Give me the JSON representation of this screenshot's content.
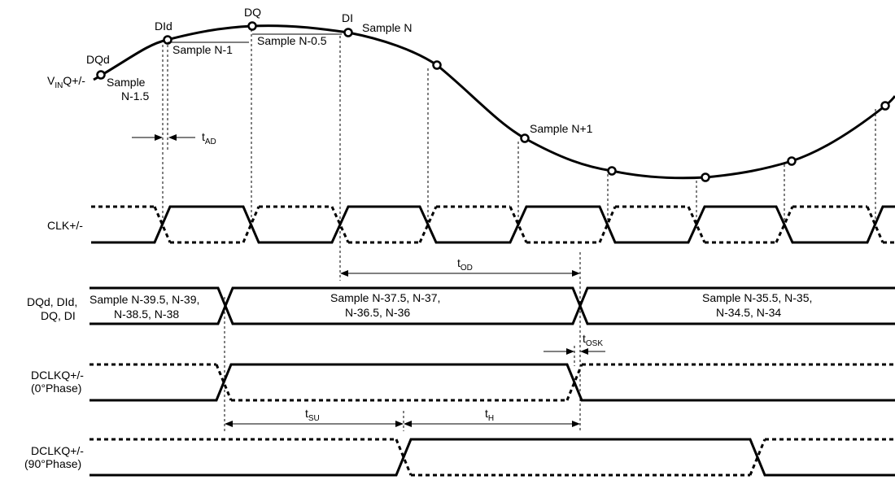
{
  "signals": {
    "vin_main": "V",
    "vin_sub": "IN",
    "vin_suffix": "Q+/-",
    "clk": "CLK+/-",
    "data_line1": "DQd, DId,",
    "data_line2": "DQ, DI",
    "dclk0_line1": "DCLKQ+/-",
    "dclk0_line2": "(0°Phase)",
    "dclk90_line1": "DCLKQ+/-",
    "dclk90_line2": "(90°Phase)"
  },
  "samples": {
    "dqd": "DQd",
    "did": "DId",
    "dq": "DQ",
    "di": "DI",
    "n15_line1": "Sample",
    "n15_line2": "N-1.5",
    "n1": "Sample N-1",
    "n05": "Sample N-0.5",
    "n": "Sample N",
    "np1": "Sample N+1"
  },
  "timing": {
    "tad_main": "t",
    "tad_sub": "AD",
    "tod_main": "t",
    "tod_sub": "OD",
    "tosk_main": "t",
    "tosk_sub": "OSK",
    "tsu_main": "t",
    "tsu_sub": "SU",
    "th_main": "t",
    "th_sub": "H"
  },
  "data_words": {
    "w1_line1": "Sample N-39.5, N-39,",
    "w1_line2": "N-38.5, N-38",
    "w2_line1": "Sample N-37.5, N-37,",
    "w2_line2": "N-36.5, N-36",
    "w3_line1": "Sample N-35.5, N-35,",
    "w3_line2": "N-34.5, N-34"
  }
}
